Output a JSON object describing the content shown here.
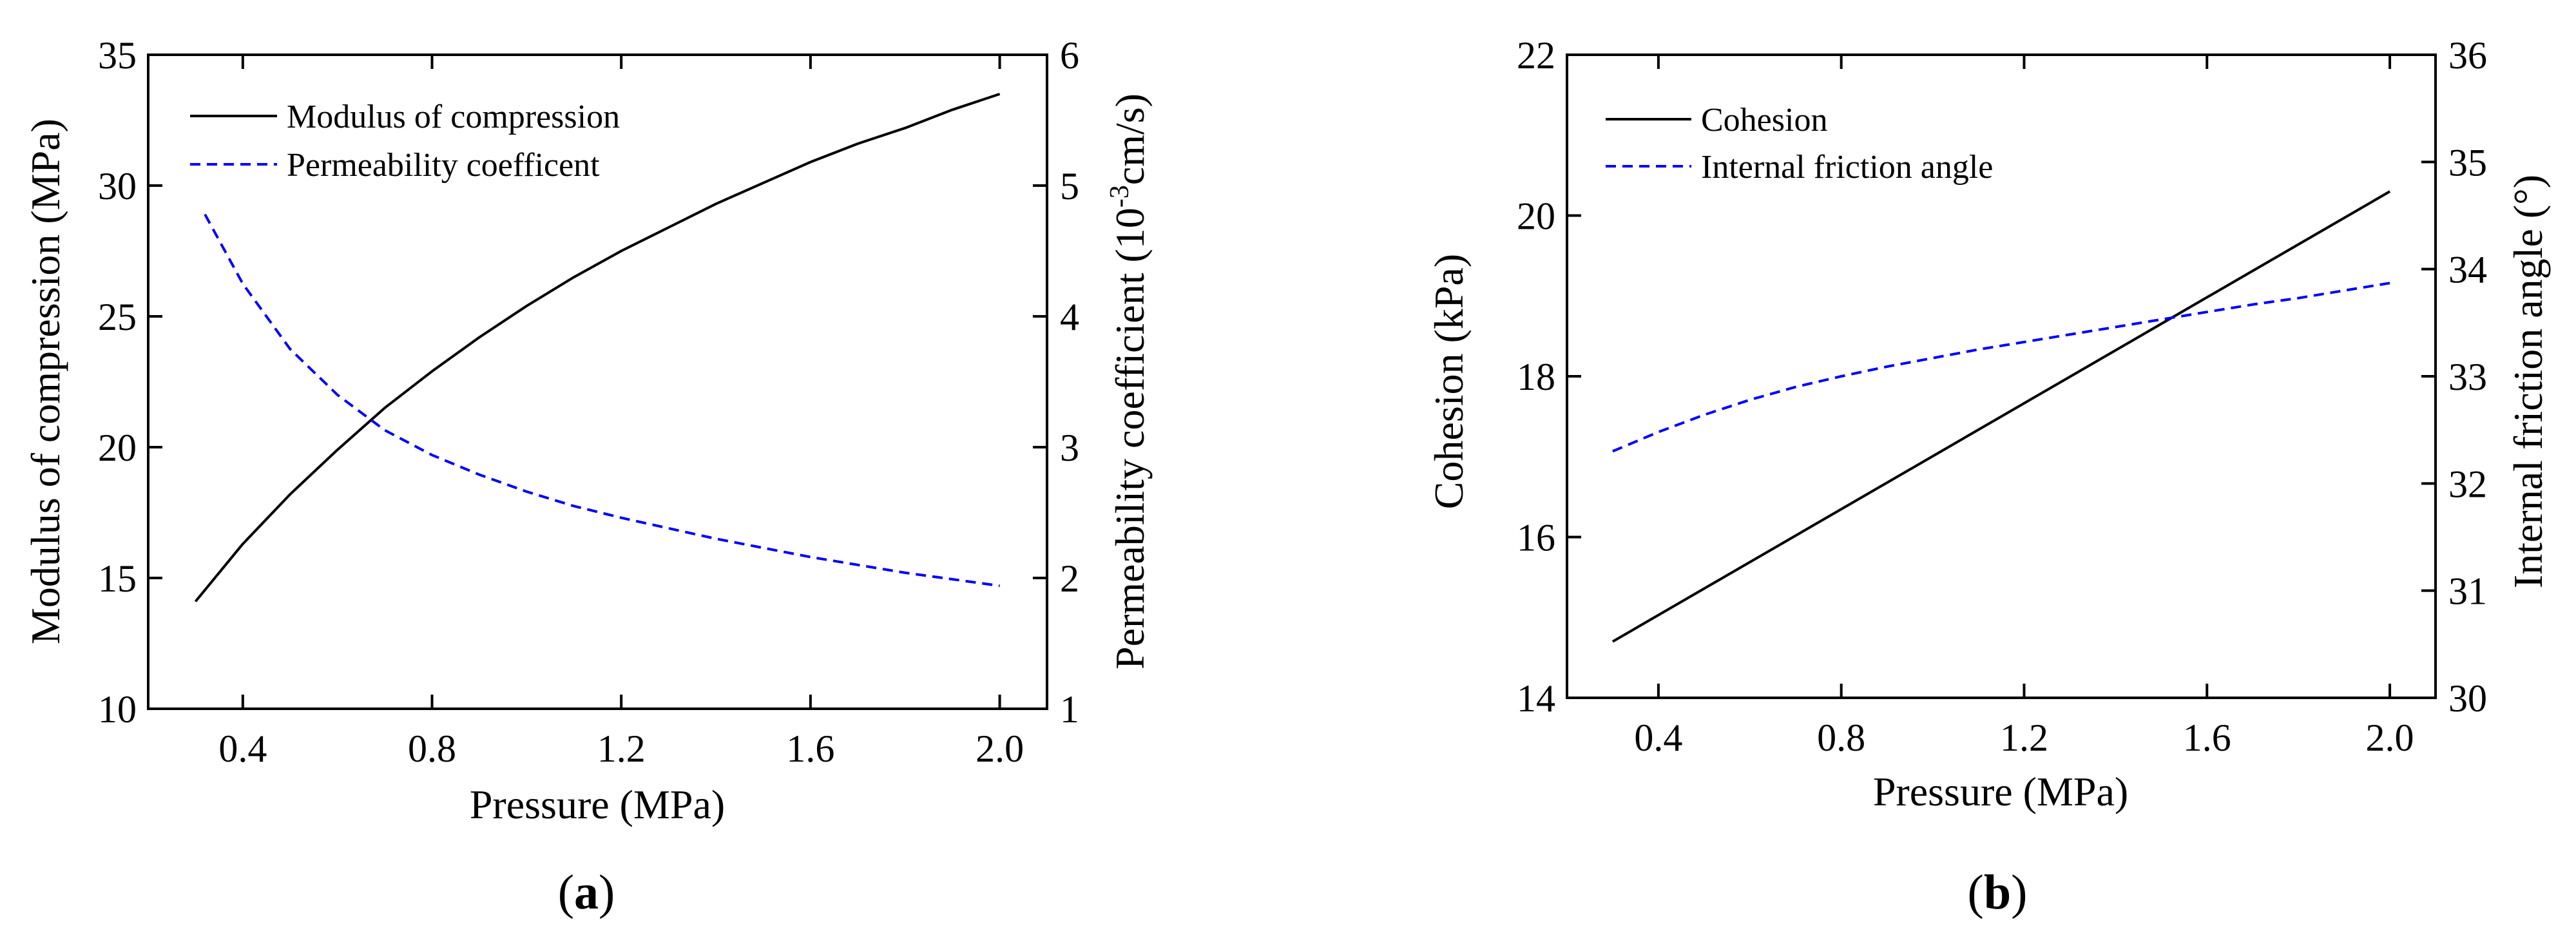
{
  "figure": {
    "panel_a_caption": {
      "open": "(",
      "letter": "a",
      "close": ")"
    },
    "panel_b_caption": {
      "open": "(",
      "letter": "b",
      "close": ")"
    }
  },
  "colors": {
    "primary_line": "#000000",
    "secondary_line": "#0000ff",
    "axis": "#000000"
  },
  "chart_data": [
    {
      "id": "a",
      "type": "line",
      "xlabel": "Pressure (MPa)",
      "ylabel": "Modulus of compression (MPa)",
      "y2label_parts": {
        "pre": "Permeability coefficient (10",
        "sup": "-3",
        "post": "cm/s)"
      },
      "xlim": [
        0.2,
        2.1
      ],
      "ylim": [
        10,
        35
      ],
      "y2lim": [
        1,
        6
      ],
      "x_ticks": [
        0.4,
        0.8,
        1.2,
        1.6,
        2.0
      ],
      "x_tick_labels": [
        "0.4",
        "0.8",
        "1.2",
        "1.6",
        "2.0"
      ],
      "y_ticks": [
        10,
        15,
        20,
        25,
        30,
        35
      ],
      "y_tick_labels": [
        "10",
        "15",
        "20",
        "25",
        "30",
        "35"
      ],
      "y2_ticks": [
        1,
        2,
        3,
        4,
        5,
        6
      ],
      "y2_tick_labels": [
        "1",
        "2",
        "3",
        "4",
        "5",
        "6"
      ],
      "legend_position": "top-left",
      "series": [
        {
          "name": "Modulus of compression",
          "axis": "left",
          "style": "solid",
          "color": "#000000",
          "x": [
            0.3,
            0.4,
            0.5,
            0.6,
            0.7,
            0.8,
            0.9,
            1.0,
            1.1,
            1.2,
            1.3,
            1.4,
            1.5,
            1.6,
            1.7,
            1.8,
            1.9,
            2.0
          ],
          "y": [
            14.1,
            16.3,
            18.2,
            19.9,
            21.5,
            22.9,
            24.2,
            25.4,
            26.5,
            27.5,
            28.4,
            29.3,
            30.1,
            30.9,
            31.6,
            32.2,
            32.9,
            33.5
          ]
        },
        {
          "name": "Permeability coefficent",
          "axis": "right",
          "style": "dashed",
          "color": "#0000ff",
          "x": [
            0.32,
            0.4,
            0.5,
            0.6,
            0.7,
            0.8,
            0.9,
            1.0,
            1.1,
            1.2,
            1.3,
            1.4,
            1.5,
            1.6,
            1.7,
            1.8,
            1.9,
            2.0
          ],
          "y": [
            4.78,
            4.25,
            3.75,
            3.4,
            3.13,
            2.94,
            2.79,
            2.66,
            2.55,
            2.46,
            2.38,
            2.3,
            2.23,
            2.16,
            2.1,
            2.04,
            1.99,
            1.94
          ]
        }
      ]
    },
    {
      "id": "b",
      "type": "line",
      "xlabel": "Pressure (MPa)",
      "ylabel": "Cohesion (kPa)",
      "y2label": "Internal friction angle (°)",
      "xlim": [
        0.2,
        2.1
      ],
      "ylim": [
        14,
        22
      ],
      "y2lim": [
        30,
        36
      ],
      "x_ticks": [
        0.4,
        0.8,
        1.2,
        1.6,
        2.0
      ],
      "x_tick_labels": [
        "0.4",
        "0.8",
        "1.2",
        "1.6",
        "2.0"
      ],
      "y_ticks": [
        14,
        16,
        18,
        20,
        22
      ],
      "y_tick_labels": [
        "14",
        "16",
        "18",
        "20",
        "22"
      ],
      "y2_ticks": [
        30,
        31,
        32,
        33,
        34,
        35,
        36
      ],
      "y2_tick_labels": [
        "30",
        "31",
        "32",
        "33",
        "34",
        "35",
        "36"
      ],
      "legend_position": "top-left",
      "series": [
        {
          "name": "Cohesion",
          "axis": "left",
          "style": "solid",
          "color": "#000000",
          "x": [
            0.3,
            2.0
          ],
          "y": [
            14.7,
            20.3
          ]
        },
        {
          "name": "Internal friction angle",
          "axis": "right",
          "style": "dashed",
          "color": "#0000ff",
          "x": [
            0.3,
            0.4,
            0.5,
            0.6,
            0.7,
            0.8,
            0.9,
            1.0,
            1.1,
            1.2,
            1.3,
            1.4,
            1.5,
            1.6,
            1.7,
            1.8,
            1.9,
            2.0
          ],
          "y": [
            32.3,
            32.48,
            32.64,
            32.78,
            32.9,
            33.0,
            33.09,
            33.17,
            33.25,
            33.32,
            33.39,
            33.46,
            33.53,
            33.6,
            33.67,
            33.73,
            33.8,
            33.87
          ]
        }
      ]
    }
  ]
}
